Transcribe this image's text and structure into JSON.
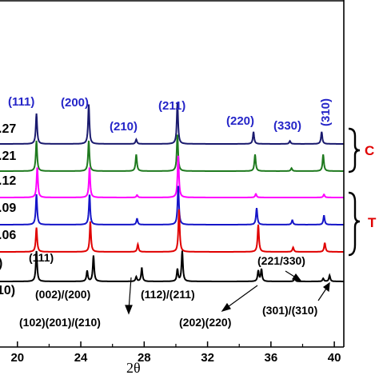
{
  "chart_data": {
    "type": "line",
    "xlabel": "2θ",
    "xlim": [
      18.9,
      40.6
    ],
    "xticks": [
      "20",
      "24",
      "28",
      "32",
      "36",
      "40"
    ],
    "tick_values": [
      20,
      24,
      28,
      32,
      36,
      40
    ],
    "grid": false,
    "series": [
      {
        "name": ".27",
        "color": "#1a1a6e",
        "peaks": [
          {
            "x": 21.2,
            "h": 1.0
          },
          {
            "x": 24.5,
            "h": 1.3
          },
          {
            "x": 27.5,
            "h": 0.15
          },
          {
            "x": 30.1,
            "h": 1.35
          },
          {
            "x": 34.9,
            "h": 0.4
          },
          {
            "x": 37.2,
            "h": 0.1
          },
          {
            "x": 39.2,
            "h": 0.4
          }
        ]
      },
      {
        "name": ".21",
        "color": "#1f7a1f",
        "peaks": [
          {
            "x": 21.2,
            "h": 1.0
          },
          {
            "x": 24.5,
            "h": 1.0
          },
          {
            "x": 27.5,
            "h": 0.55
          },
          {
            "x": 30.1,
            "h": 1.2
          },
          {
            "x": 35.0,
            "h": 0.55
          },
          {
            "x": 37.3,
            "h": 0.1
          },
          {
            "x": 39.3,
            "h": 0.55
          }
        ]
      },
      {
        "name": ".12",
        "color": "#ff00ff",
        "peaks": [
          {
            "x": 21.25,
            "h": 1.0
          },
          {
            "x": 24.55,
            "h": 1.0
          },
          {
            "x": 27.55,
            "h": 0.08
          },
          {
            "x": 30.15,
            "h": 1.4
          },
          {
            "x": 35.05,
            "h": 0.12
          },
          {
            "x": 39.35,
            "h": 0.1
          }
        ]
      },
      {
        "name": ".09",
        "color": "#1515c8",
        "peaks": [
          {
            "x": 21.2,
            "h": 1.0
          },
          {
            "x": 24.55,
            "h": 1.0
          },
          {
            "x": 27.55,
            "h": 0.2
          },
          {
            "x": 30.15,
            "h": 1.3
          },
          {
            "x": 35.1,
            "h": 0.55
          },
          {
            "x": 37.35,
            "h": 0.15
          },
          {
            "x": 39.35,
            "h": 0.3
          }
        ]
      },
      {
        "name": ".06",
        "color": "#e00000",
        "peaks": [
          {
            "x": 21.2,
            "h": 0.8
          },
          {
            "x": 24.6,
            "h": 1.0
          },
          {
            "x": 27.6,
            "h": 0.25
          },
          {
            "x": 30.2,
            "h": 1.4
          },
          {
            "x": 35.2,
            "h": 0.9
          },
          {
            "x": 37.4,
            "h": 0.15
          },
          {
            "x": 39.4,
            "h": 0.3
          }
        ]
      },
      {
        "name": "",
        "color": "#000000",
        "peaks": [
          {
            "x": 21.2,
            "h": 1.0
          },
          {
            "x": 24.4,
            "h": 0.35
          },
          {
            "x": 24.8,
            "h": 0.85
          },
          {
            "x": 27.5,
            "h": 0.15
          },
          {
            "x": 27.85,
            "h": 0.45
          },
          {
            "x": 30.1,
            "h": 0.4
          },
          {
            "x": 30.4,
            "h": 1.0
          },
          {
            "x": 35.2,
            "h": 0.35
          },
          {
            "x": 35.4,
            "h": 0.4
          },
          {
            "x": 37.5,
            "h": 0.1
          },
          {
            "x": 39.3,
            "h": 0.1
          },
          {
            "x": 39.7,
            "h": 0.2
          }
        ]
      }
    ],
    "annotations_top": [
      "(111)",
      "(200)",
      "(210)",
      "(211)",
      "(220)",
      "(330)",
      "(310)"
    ],
    "annotations_bottom": [
      "(111)",
      "(002)/(200)",
      "(102)(201)/(210)",
      "(112)/(211)",
      "(202)(220)",
      "(221/330)",
      "(301)/(310)"
    ],
    "bottom_partial_label": "10)",
    "bottom_partial_label2": ")",
    "bracket_labels": [
      "C",
      "T"
    ]
  }
}
